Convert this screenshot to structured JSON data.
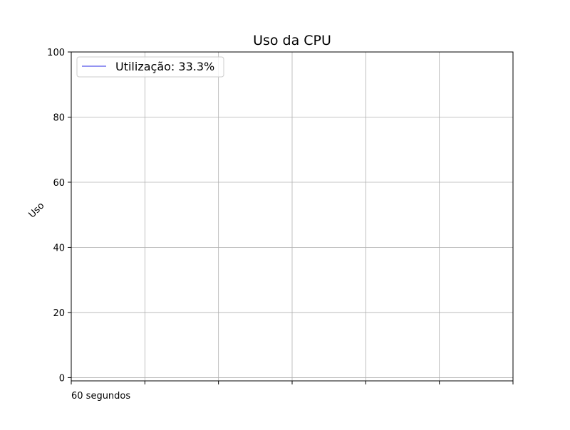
{
  "chart_data": {
    "type": "line",
    "title": "Uso da CPU",
    "xlabel": "60 segundos",
    "ylabel": "Uso",
    "xlim": [
      0,
      60
    ],
    "ylim": [
      -1,
      100
    ],
    "x_ticks": [
      0,
      10,
      20,
      30,
      40,
      50,
      60
    ],
    "y_ticks": [
      0,
      20,
      40,
      60,
      80,
      100
    ],
    "y_tick_labels": [
      "0",
      "20",
      "40",
      "60",
      "80",
      "100"
    ],
    "grid": true,
    "legend_position": "top-left",
    "series": [
      {
        "name": "Utilização: 33.3%",
        "color": "#7070ee",
        "x": [],
        "y": []
      }
    ]
  }
}
